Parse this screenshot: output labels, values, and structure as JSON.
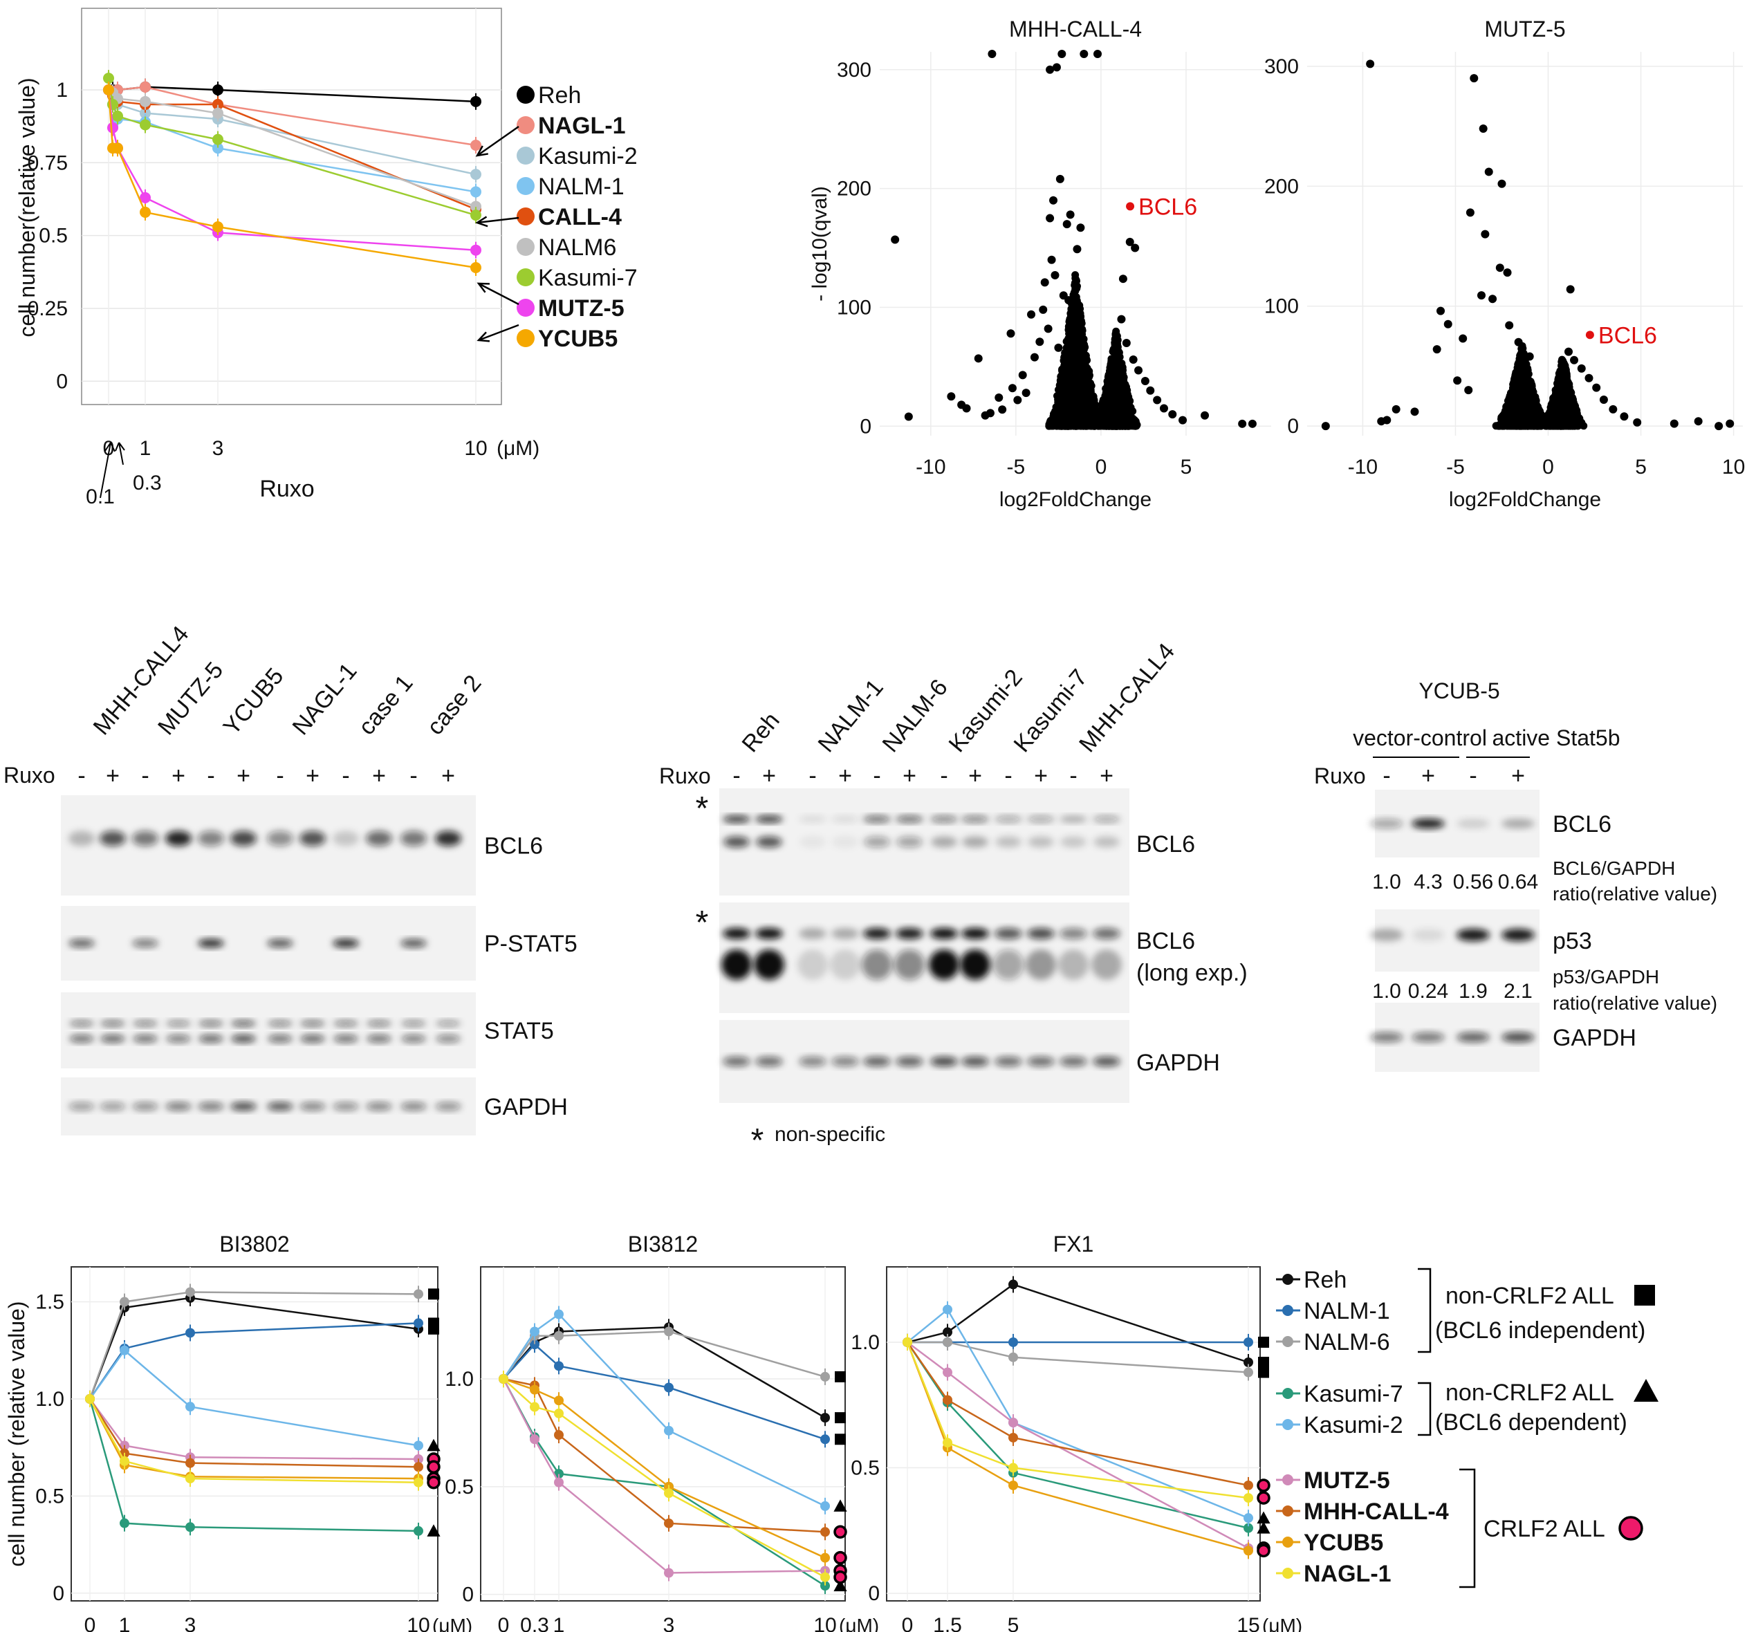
{
  "chart_data": [
    {
      "type": "line",
      "id": "ruxo",
      "ylabel": "cell number(relative value)",
      "xlabel": "Ruxo",
      "x_unit": "(μM)",
      "x_ticks": [
        "0",
        "1",
        "3",
        "10"
      ],
      "x_arrow_labels": [
        "0.1",
        "0.3"
      ],
      "x": [
        0,
        0.1,
        0.3,
        1,
        3,
        10
      ],
      "y_ticks": [
        "0",
        "0.25",
        "0.5",
        "0.75",
        "1"
      ],
      "ylim": [
        -0.08,
        1.28
      ],
      "series": [
        {
          "name": "Reh",
          "bold": false,
          "color": "#000000",
          "values": [
            1.0,
            1.0,
            1.0,
            1.01,
            1.0,
            0.96
          ]
        },
        {
          "name": "NAGL-1",
          "bold": true,
          "color": "#f08c80",
          "values": [
            1.0,
            0.99,
            1.0,
            1.01,
            0.95,
            0.81
          ]
        },
        {
          "name": "Kasumi-2",
          "bold": false,
          "color": "#a9c8d6",
          "values": [
            1.0,
            0.98,
            0.95,
            0.92,
            0.9,
            0.71
          ]
        },
        {
          "name": "NALM-1",
          "bold": false,
          "color": "#7fc4f0",
          "values": [
            1.0,
            0.95,
            0.9,
            0.89,
            0.8,
            0.65
          ]
        },
        {
          "name": "CALL-4",
          "bold": true,
          "color": "#e05010",
          "values": [
            1.0,
            0.98,
            0.96,
            0.95,
            0.95,
            0.59
          ]
        },
        {
          "name": "NALM6",
          "bold": false,
          "color": "#c0c0c0",
          "values": [
            1.0,
            0.99,
            0.97,
            0.96,
            0.92,
            0.6
          ]
        },
        {
          "name": "Kasumi-7",
          "bold": false,
          "color": "#9ccc30",
          "values": [
            1.04,
            0.95,
            0.91,
            0.88,
            0.83,
            0.57
          ]
        },
        {
          "name": "MUTZ-5",
          "bold": true,
          "color": "#ee44ee",
          "values": [
            1.0,
            0.87,
            0.8,
            0.63,
            0.51,
            0.45
          ]
        },
        {
          "name": "YCUB5",
          "bold": true,
          "color": "#f5a800",
          "values": [
            1.0,
            0.8,
            0.8,
            0.58,
            0.53,
            0.39
          ]
        }
      ]
    },
    {
      "type": "scatter",
      "id": "volcano-call4",
      "title": "MHH-CALL-4",
      "xlabel": "log2FoldChange",
      "ylabel": "- log10(qval)",
      "x_ticks": [
        -10,
        -5,
        0,
        5
      ],
      "y_ticks": [
        0,
        100,
        200,
        300
      ],
      "xlim": [
        -13,
        10
      ],
      "ylim": [
        -8,
        315
      ],
      "highlight": {
        "label": "BCL6",
        "x": 2.2,
        "y": 185,
        "color": "#e01010"
      },
      "points": [
        [
          -12.1,
          157
        ],
        [
          -11.3,
          8
        ],
        [
          -8.8,
          25
        ],
        [
          -8.2,
          18
        ],
        [
          -7.9,
          15
        ],
        [
          -7.2,
          57
        ],
        [
          -6.8,
          9
        ],
        [
          -6.0,
          24
        ],
        [
          -5.3,
          78
        ],
        [
          -4.1,
          94
        ],
        [
          -3.0,
          300
        ],
        [
          -2.6,
          302
        ],
        [
          -2.4,
          208
        ],
        [
          -2.8,
          190
        ],
        [
          -3.0,
          175
        ],
        [
          -1.8,
          178
        ],
        [
          -2.0,
          170
        ],
        [
          -1.4,
          149
        ],
        [
          -1.2,
          167
        ],
        [
          -2.9,
          140
        ],
        [
          -3.3,
          121
        ],
        [
          -2.7,
          127
        ],
        [
          -3.4,
          98
        ],
        [
          -2.2,
          110
        ],
        [
          -1.9,
          106
        ],
        [
          -3.6,
          71
        ],
        [
          -3.9,
          58
        ],
        [
          -4.6,
          43
        ],
        [
          -5.2,
          32
        ],
        [
          -4.4,
          28
        ],
        [
          -4.9,
          22
        ],
        [
          -5.8,
          14
        ],
        [
          -6.5,
          11
        ],
        [
          -3.1,
          82
        ],
        [
          -1.6,
          92
        ],
        [
          -1.1,
          72
        ],
        [
          1.3,
          124
        ],
        [
          1.7,
          155
        ],
        [
          2.0,
          150
        ],
        [
          1.2,
          90
        ],
        [
          1.5,
          70
        ],
        [
          1.9,
          56
        ],
        [
          2.2,
          47
        ],
        [
          2.6,
          38
        ],
        [
          2.9,
          30
        ],
        [
          3.3,
          22
        ],
        [
          3.7,
          15
        ],
        [
          4.2,
          10
        ],
        [
          4.8,
          5
        ],
        [
          6.1,
          9
        ],
        [
          8.3,
          2
        ],
        [
          8.9,
          2
        ],
        [
          -1.5,
          60
        ],
        [
          -2.5,
          66
        ],
        [
          1.0,
          58
        ]
      ],
      "cloud": [
        {
          "cx": -1.5,
          "spread": 1.7,
          "hmax": 130,
          "n": 1500,
          "seed": 11
        },
        {
          "cx": 0.9,
          "spread": 1.4,
          "hmax": 82,
          "n": 1100,
          "seed": 23
        }
      ],
      "top_clip": [
        [
          -6.4,
          318
        ],
        [
          -2.3,
          318
        ],
        [
          -1.0,
          318
        ],
        [
          -0.2,
          318
        ]
      ]
    },
    {
      "type": "scatter",
      "id": "volcano-mutz5",
      "title": "MUTZ-5",
      "xlabel": "log2FoldChange",
      "x_ticks": [
        -10,
        -5,
        0,
        5,
        10
      ],
      "y_ticks": [
        0,
        100,
        200,
        300
      ],
      "xlim": [
        -13,
        10.5
      ],
      "ylim": [
        -8,
        312
      ],
      "highlight": {
        "label": "BCL6",
        "x": 2.7,
        "y": 76,
        "color": "#e01010"
      },
      "points": [
        [
          -12.0,
          0
        ],
        [
          -9.6,
          302
        ],
        [
          -4.0,
          290
        ],
        [
          -3.5,
          248
        ],
        [
          -3.2,
          212
        ],
        [
          -2.5,
          202
        ],
        [
          -4.2,
          178
        ],
        [
          -3.4,
          160
        ],
        [
          -2.6,
          132
        ],
        [
          -2.2,
          128
        ],
        [
          -3.6,
          109
        ],
        [
          -3.0,
          106
        ],
        [
          -2.1,
          84
        ],
        [
          -5.8,
          96
        ],
        [
          -5.4,
          85
        ],
        [
          -4.6,
          73
        ],
        [
          -6.0,
          64
        ],
        [
          -7.2,
          12
        ],
        [
          -8.2,
          14
        ],
        [
          -8.7,
          5
        ],
        [
          -9.0,
          4
        ],
        [
          -4.9,
          38
        ],
        [
          -4.3,
          30
        ],
        [
          -1.6,
          70
        ],
        [
          1.2,
          114
        ],
        [
          1.1,
          62
        ],
        [
          1.4,
          55
        ],
        [
          1.8,
          48
        ],
        [
          2.2,
          40
        ],
        [
          2.6,
          32
        ],
        [
          3.0,
          22
        ],
        [
          3.5,
          14
        ],
        [
          4.1,
          8
        ],
        [
          4.8,
          3
        ],
        [
          6.8,
          2
        ],
        [
          8.1,
          4
        ],
        [
          9.8,
          2
        ],
        [
          9.2,
          0
        ],
        [
          -1.0,
          58
        ]
      ],
      "cloud": [
        {
          "cx": -1.4,
          "spread": 1.5,
          "hmax": 68,
          "n": 1300,
          "seed": 37
        },
        {
          "cx": 0.8,
          "spread": 1.2,
          "hmax": 60,
          "n": 1000,
          "seed": 51
        }
      ],
      "top_clip": []
    },
    {
      "type": "line",
      "id": "bi3802",
      "title": "BI3802",
      "ylabel": "cell number (relative value)",
      "x": [
        0,
        1,
        3,
        10
      ],
      "x_ticks": [
        "0",
        "1",
        "3",
        "10"
      ],
      "x_unit": "(μM)",
      "y_ticks": [
        "0",
        "0.5",
        "1.0",
        "1.5"
      ],
      "ylim": [
        -0.04,
        1.68
      ],
      "series": [
        {
          "name": "Reh",
          "values": [
            1.0,
            1.47,
            1.52,
            1.36
          ],
          "marker": "square"
        },
        {
          "name": "NALM-1",
          "values": [
            1.0,
            1.26,
            1.34,
            1.39
          ],
          "marker": "square"
        },
        {
          "name": "NALM-6",
          "values": [
            1.0,
            1.5,
            1.55,
            1.54
          ],
          "marker": "square"
        },
        {
          "name": "Kasumi-7",
          "values": [
            1.0,
            0.36,
            0.34,
            0.32
          ],
          "marker": "triangle"
        },
        {
          "name": "Kasumi-2",
          "values": [
            1.0,
            1.25,
            0.96,
            0.76
          ],
          "marker": "triangle"
        },
        {
          "name": "MUTZ-5",
          "values": [
            1.0,
            0.76,
            0.7,
            0.69
          ],
          "marker": "circle"
        },
        {
          "name": "MHH-CALL-4",
          "values": [
            1.0,
            0.72,
            0.67,
            0.65
          ],
          "marker": "circle"
        },
        {
          "name": "YCUB5",
          "values": [
            1.0,
            0.66,
            0.6,
            0.59
          ],
          "marker": "circle"
        },
        {
          "name": "NAGL-1",
          "values": [
            1.0,
            0.68,
            0.59,
            0.57
          ],
          "marker": "circle"
        }
      ]
    },
    {
      "type": "line",
      "id": "bi3812",
      "title": "BI3812",
      "x": [
        0,
        0.3,
        1,
        3,
        10
      ],
      "x_ticks": [
        "0",
        "0.3",
        "1",
        "3",
        "10"
      ],
      "x_unit": "(μM)",
      "y_ticks": [
        "0",
        "0.5",
        "1.0"
      ],
      "ylim": [
        -0.03,
        1.52
      ],
      "series": [
        {
          "name": "Reh",
          "values": [
            1.0,
            1.17,
            1.22,
            1.24,
            0.82
          ],
          "marker": "square"
        },
        {
          "name": "NALM-1",
          "values": [
            1.0,
            1.16,
            1.06,
            0.96,
            0.72
          ],
          "marker": "square"
        },
        {
          "name": "NALM-6",
          "values": [
            1.0,
            1.2,
            1.2,
            1.22,
            1.01
          ],
          "marker": "square"
        },
        {
          "name": "Kasumi-7",
          "values": [
            1.0,
            0.73,
            0.56,
            0.5,
            0.04
          ],
          "marker": "triangle"
        },
        {
          "name": "Kasumi-2",
          "values": [
            1.0,
            1.22,
            1.3,
            0.76,
            0.41
          ],
          "marker": "triangle"
        },
        {
          "name": "MUTZ-5",
          "values": [
            1.0,
            0.72,
            0.52,
            0.1,
            0.11
          ],
          "marker": "circle"
        },
        {
          "name": "MHH-CALL-4",
          "values": [
            1.0,
            0.97,
            0.74,
            0.33,
            0.29
          ],
          "marker": "circle"
        },
        {
          "name": "YCUB5",
          "values": [
            1.0,
            0.95,
            0.9,
            0.5,
            0.17
          ],
          "marker": "circle"
        },
        {
          "name": "NAGL-1",
          "values": [
            1.0,
            0.87,
            0.84,
            0.47,
            0.08
          ],
          "marker": "circle"
        }
      ]
    },
    {
      "type": "line",
      "id": "fx1",
      "title": "FX1",
      "x": [
        0,
        1.5,
        5,
        15
      ],
      "x_ticks": [
        "0",
        "1.5",
        "5",
        "15"
      ],
      "x_unit": "(μM)",
      "y_ticks": [
        "0",
        "0.5",
        "1.0"
      ],
      "ylim": [
        -0.03,
        1.3
      ],
      "series": [
        {
          "name": "Reh",
          "values": [
            1.0,
            1.04,
            1.23,
            0.92
          ],
          "marker": "square"
        },
        {
          "name": "NALM-1",
          "values": [
            1.0,
            1.0,
            1.0,
            1.0
          ],
          "marker": "square"
        },
        {
          "name": "NALM-6",
          "values": [
            1.0,
            1.0,
            0.94,
            0.88
          ],
          "marker": "square"
        },
        {
          "name": "Kasumi-7",
          "values": [
            1.0,
            0.76,
            0.48,
            0.26
          ],
          "marker": "triangle"
        },
        {
          "name": "Kasumi-2",
          "values": [
            1.0,
            1.13,
            0.68,
            0.3
          ],
          "marker": "triangle"
        },
        {
          "name": "MUTZ-5",
          "values": [
            1.0,
            0.88,
            0.68,
            0.18
          ],
          "marker": "circle"
        },
        {
          "name": "MHH-CALL-4",
          "values": [
            1.0,
            0.77,
            0.62,
            0.43
          ],
          "marker": "circle"
        },
        {
          "name": "YCUB5",
          "values": [
            1.0,
            0.58,
            0.43,
            0.17
          ],
          "marker": "circle"
        },
        {
          "name": "NAGL-1",
          "values": [
            1.0,
            0.6,
            0.5,
            0.38
          ],
          "marker": "circle"
        }
      ]
    }
  ],
  "bottom_legend": {
    "items": [
      {
        "name": "Reh",
        "color": "#111111",
        "bold": false
      },
      {
        "name": "NALM-1",
        "color": "#2a6fb0",
        "bold": false
      },
      {
        "name": "NALM-6",
        "color": "#a0a0a0",
        "bold": false
      },
      {
        "name": "Kasumi-7",
        "color": "#2a9a7a",
        "bold": false
      },
      {
        "name": "Kasumi-2",
        "color": "#6db6e8",
        "bold": false
      },
      {
        "name": "MUTZ-5",
        "color": "#d08ab8",
        "bold": true
      },
      {
        "name": "MHH-CALL-4",
        "color": "#c8661a",
        "bold": true
      },
      {
        "name": "YCUB5",
        "color": "#e8a010",
        "bold": true
      },
      {
        "name": "NAGL-1",
        "color": "#f0e030",
        "bold": true
      }
    ],
    "groups": [
      {
        "line1": "non-CRLF2 ALL",
        "line2": "(BCL6 independent)",
        "marker": "square"
      },
      {
        "line1": "non-CRLF2 ALL",
        "line2": "(BCL6 dependent)",
        "marker": "triangle"
      },
      {
        "line1": "CRLF2 ALL",
        "line2": "",
        "marker": "circle"
      }
    ],
    "circle_color": "#ee1a6a"
  },
  "blots": {
    "ruxo_label": "Ruxo",
    "signs": [
      "-",
      "+"
    ],
    "blot1": {
      "lanes": [
        "MHH-CALL4",
        "MUTZ-5",
        "YCUB5",
        "NAGL-1",
        "case 1",
        "case 2"
      ],
      "bands": [
        "BCL6",
        "P-STAT5",
        "STAT5",
        "GAPDH"
      ]
    },
    "blot2": {
      "lanes": [
        "Reh",
        "NALM-1",
        "NALM-6",
        "Kasumi-2",
        "Kasumi-7",
        "MHH-CALL4"
      ],
      "bands": [
        "BCL6",
        "BCL6",
        "GAPDH"
      ],
      "band2_sub": "(long exp.)",
      "asterisk": "*",
      "footnote": "non-specific"
    },
    "blot3": {
      "title": "YCUB-5",
      "group1": "vector-control",
      "group2": "active Stat5b",
      "bands": [
        "BCL6",
        "p53",
        "GAPDH"
      ],
      "ratio1_values": [
        "1.0",
        "4.3",
        "0.56",
        "0.64"
      ],
      "ratio1_label1": "BCL6/GAPDH",
      "ratio1_label2": "ratio(relative value)",
      "ratio2_values": [
        "1.0",
        "0.24",
        "1.9",
        "2.1"
      ],
      "ratio2_label1": "p53/GAPDH",
      "ratio2_label2": "ratio(relative value)"
    }
  }
}
